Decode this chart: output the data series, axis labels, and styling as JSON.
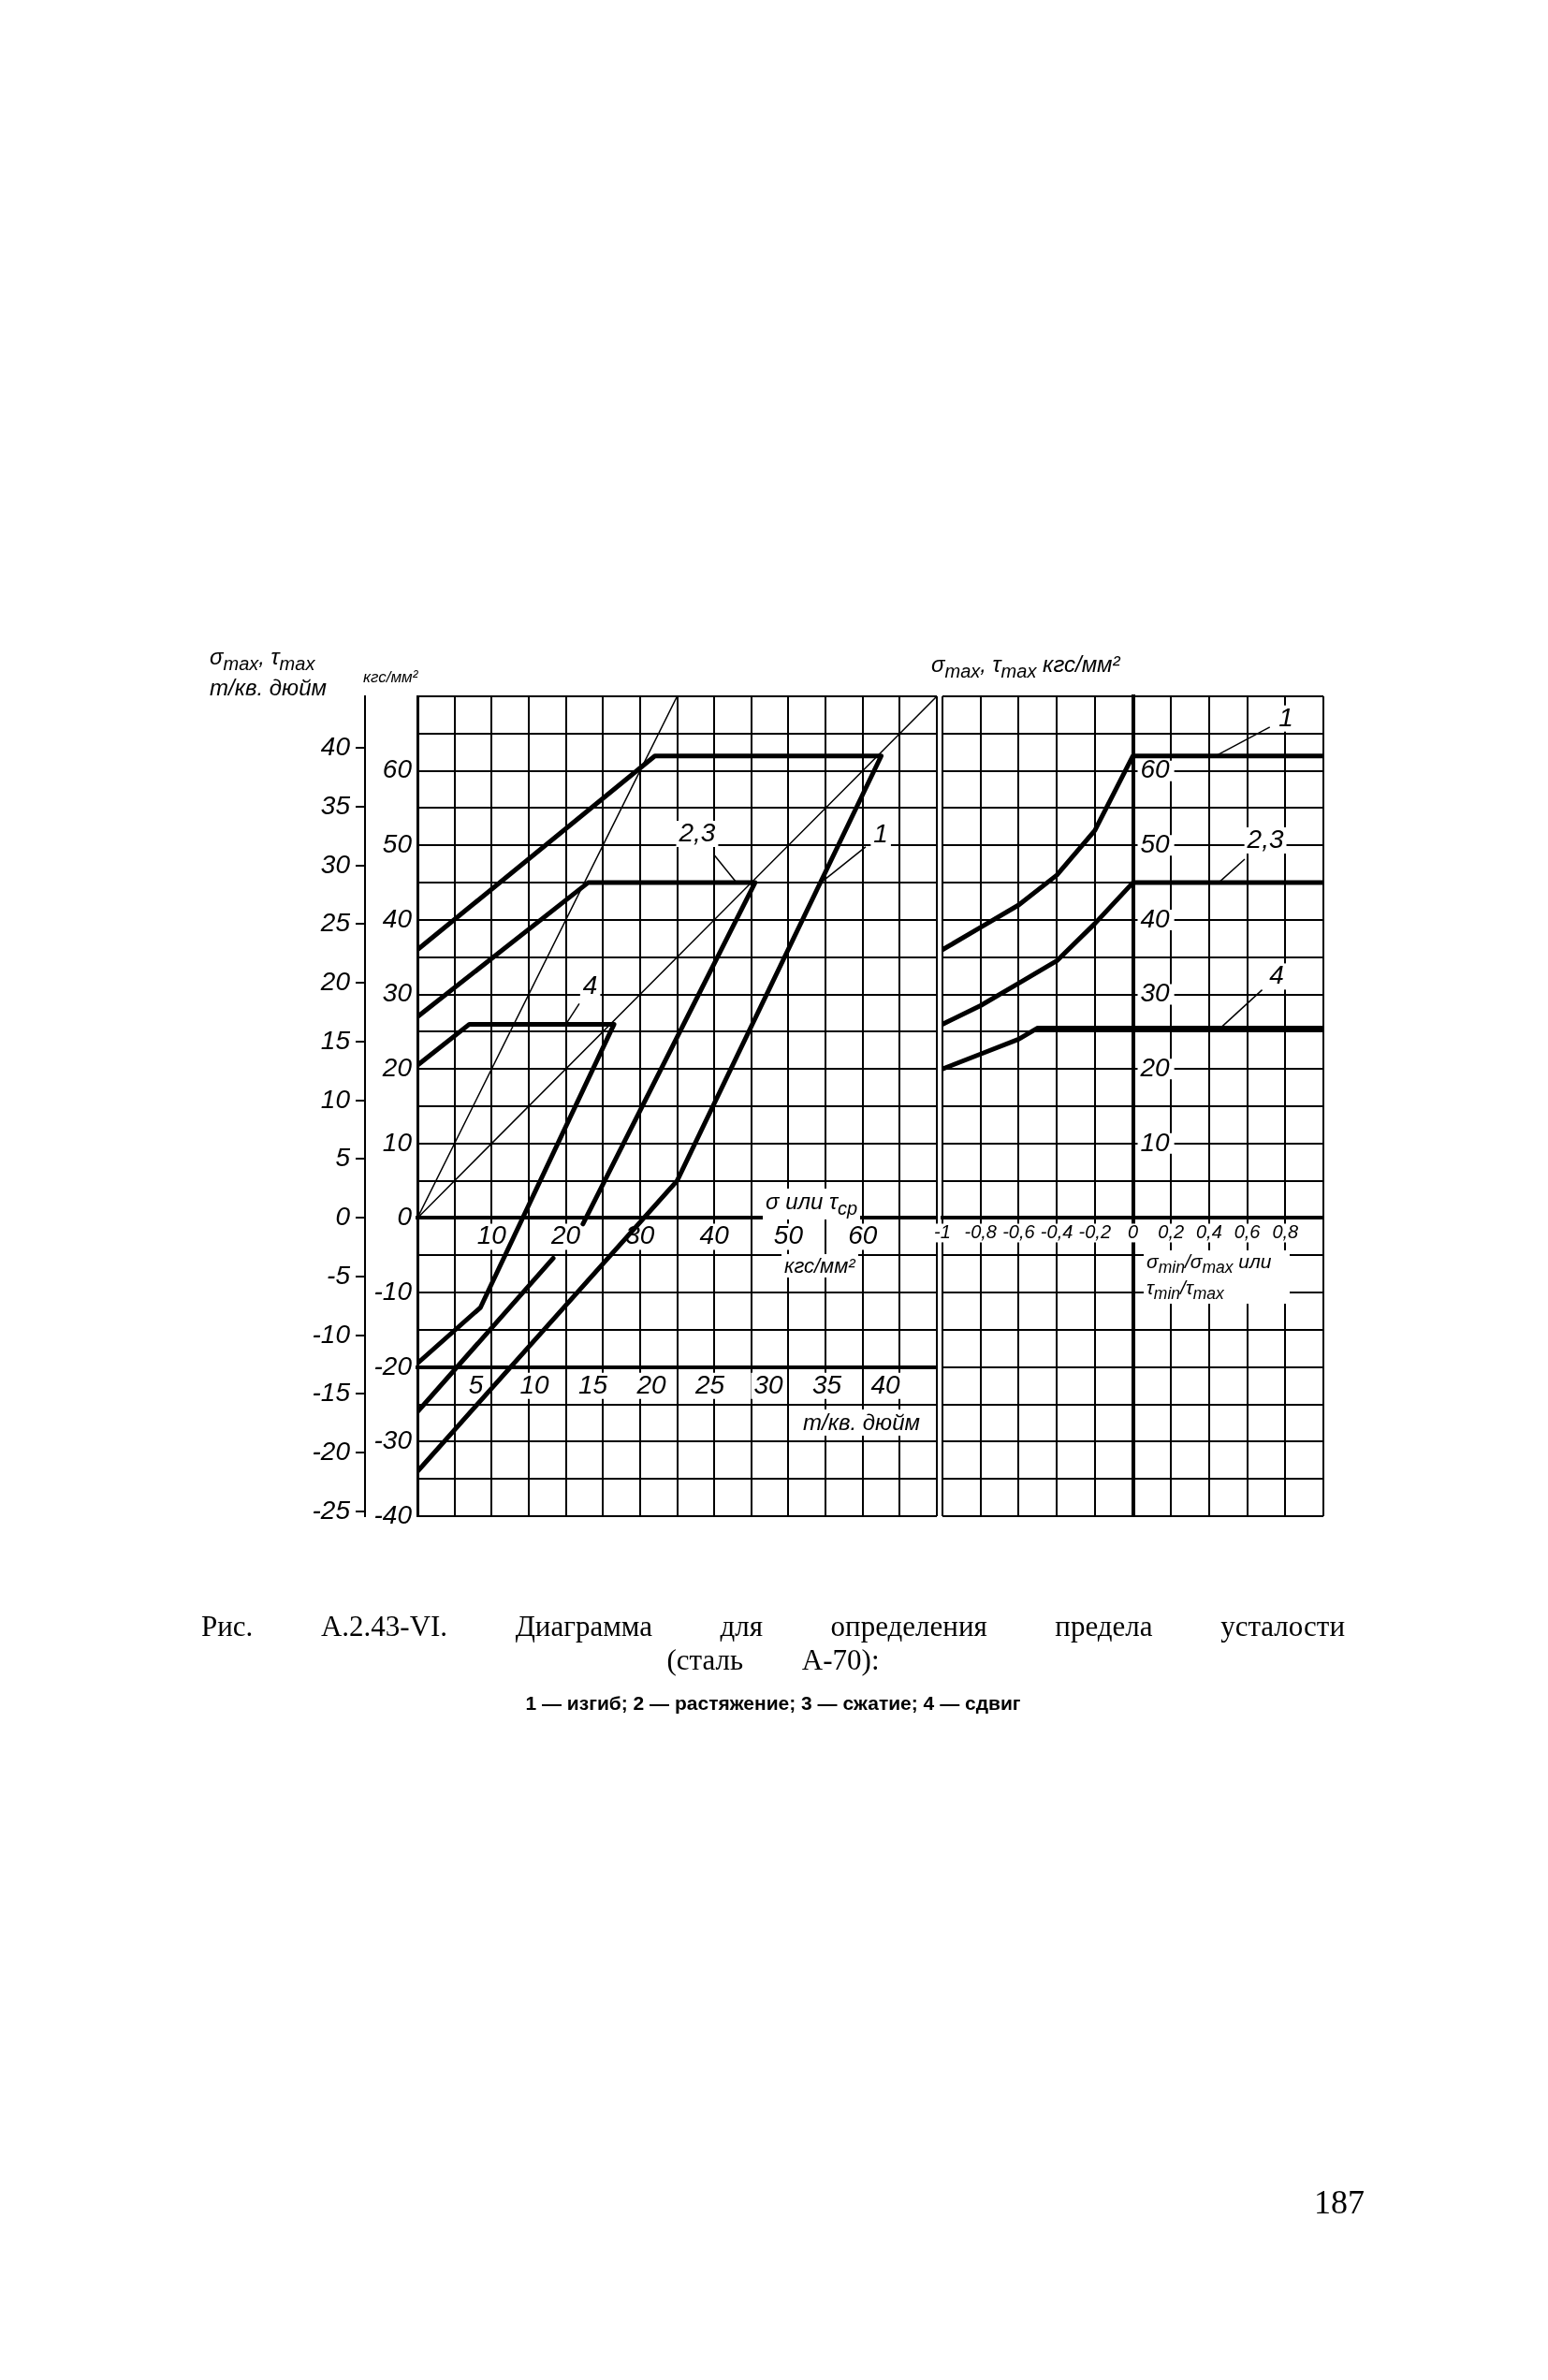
{
  "chart_data": [
    {
      "type": "line",
      "title": "Рис. А.2.43-VI. Диаграмма для определения предела усталости (сталь А-70):",
      "subtitle": "1 — изгиб; 2 — растяжение; 3 — сжатие; 4 — сдвиг",
      "xlabel": "σ или τ$_{ср}$",
      "x2label": "т/кв. дюйм",
      "ylabel": "кгс/мм²",
      "y2label": "σ$_{max}$, τ$_{max}$ т/кв. дюйм",
      "annotations": [
        "кгс/мм²",
        "187"
      ],
      "series": [
        {
          "name": "1",
          "color": "#000000",
          "x": [
            0,
            32,
            62.5,
            35,
            0
          ],
          "values": [
            36,
            62,
            62,
            5,
            -34
          ]
        },
        {
          "name": "2,3",
          "color": "#000000",
          "x": [
            0,
            23,
            45.5,
            22.3,
            20,
            18.3,
            0
          ],
          "values": [
            27,
            45,
            45,
            -0.8,
            null,
            -5.4,
            -26
          ]
        },
        {
          "name": "4",
          "color": "#000000",
          "x": [
            0,
            7,
            26.5,
            8.5,
            0
          ],
          "values": [
            20.5,
            26,
            26,
            -12,
            -19.5
          ]
        },
        {
          "color": "#000000",
          "x": [
            0,
            35
          ],
          "values": [
            0,
            70
          ]
        },
        {
          "color": "#000000",
          "x": [
            0,
            70
          ],
          "values": [
            0,
            70
          ]
        }
      ],
      "xlim": [
        0,
        70
      ],
      "xticks": [
        {
          "value": 0,
          "label": null
        },
        {
          "value": 5,
          "label": null
        },
        10,
        {
          "value": 15,
          "label": null
        },
        20,
        {
          "value": 25,
          "label": null
        },
        30,
        {
          "value": 35,
          "label": null
        },
        40,
        {
          "value": 45,
          "label": null
        },
        50,
        {
          "value": 55,
          "label": null
        },
        60,
        {
          "value": 65,
          "label": null
        },
        {
          "value": 70,
          "label": null
        }
      ],
      "ylim": [
        -40,
        70
      ],
      "yticks": [
        {
          "value": 70,
          "label": null
        },
        {
          "value": 65,
          "label": null
        },
        60,
        {
          "value": 55,
          "label": null
        },
        50,
        {
          "value": 45,
          "label": null
        },
        40,
        {
          "value": 35,
          "label": null
        },
        30,
        {
          "value": 25,
          "label": null
        },
        20,
        {
          "value": 15,
          "label": null
        },
        10,
        {
          "value": 5,
          "label": null
        },
        0,
        {
          "value": -5,
          "label": null
        },
        -10,
        {
          "value": -15,
          "label": null
        },
        -20,
        {
          "value": -25,
          "label": null
        },
        -30,
        {
          "value": -35,
          "label": null
        },
        -40
      ],
      "x2lim": [
        0,
        44.4
      ],
      "x2ticks": [
        5,
        10,
        15,
        20,
        25,
        30,
        35,
        40
      ],
      "y2lim": [
        -25.4,
        44.4
      ],
      "y2ticks": [
        40,
        35,
        30,
        25,
        20,
        15,
        10,
        5,
        0,
        -5,
        -10,
        -15,
        -20,
        -25
      ],
      "grid": true,
      "legend": false,
      "marker": "none"
    },
    {
      "type": "line",
      "xlabel": "σ$_{min}$/σ$_{max}$ или τ$_{min}$/τ$_{max}$",
      "ylabel": "σ$_{max}$, τ$_{max}$ кгс/мм²",
      "series": [
        {
          "name": "1",
          "color": "#000000",
          "x": [
            -1,
            -0.8,
            -0.6,
            -0.4,
            -0.2,
            0,
            1
          ],
          "values": [
            36,
            39,
            42,
            46,
            52,
            62,
            62
          ]
        },
        {
          "name": "2,3",
          "color": "#000000",
          "x": [
            -1,
            -0.8,
            -0.6,
            -0.4,
            -0.2,
            0,
            1
          ],
          "values": [
            26,
            28.5,
            31.5,
            34.5,
            39.5,
            45,
            45
          ]
        },
        {
          "name": "4",
          "color": "#000000",
          "x": [
            -1,
            -0.8,
            -0.6,
            -0.5,
            1
          ],
          "values": [
            20,
            22,
            24,
            25.5,
            25.5
          ]
        }
      ],
      "xlim": [
        -1,
        1
      ],
      "xticks": [
        -1,
        {
          "value": -0.8,
          "label": "-0,8"
        },
        {
          "value": -0.6,
          "label": "-0,6"
        },
        {
          "value": -0.4,
          "label": "-0,4"
        },
        {
          "value": -0.2,
          "label": "-0,2"
        },
        0,
        {
          "value": 0.2,
          "label": "0,2"
        },
        {
          "value": 0.4,
          "label": "0,4"
        },
        {
          "value": 0.6,
          "label": "0,6"
        },
        {
          "value": 0.8,
          "label": "0,8"
        },
        {
          "value": 1,
          "label": null
        }
      ],
      "ylim": [
        -40,
        70
      ],
      "yticks": [
        {
          "value": 70,
          "label": null
        },
        {
          "value": 65,
          "label": null
        },
        60,
        {
          "value": 55,
          "label": null
        },
        50,
        {
          "value": 45,
          "label": null
        },
        40,
        {
          "value": 35,
          "label": null
        },
        30,
        {
          "value": 25,
          "label": null
        },
        20,
        {
          "value": 15,
          "label": null
        },
        10,
        {
          "value": 5,
          "label": null
        },
        {
          "value": 0,
          "label": null
        },
        {
          "value": -5,
          "label": null
        },
        {
          "value": -10,
          "label": null
        },
        {
          "value": -15,
          "label": null
        },
        {
          "value": -20,
          "label": null
        },
        {
          "value": -25,
          "label": null
        },
        {
          "value": -30,
          "label": null
        },
        {
          "value": -35,
          "label": null
        },
        {
          "value": -40,
          "label": null
        }
      ],
      "grid": true,
      "legend": false,
      "marker": "none"
    }
  ]
}
